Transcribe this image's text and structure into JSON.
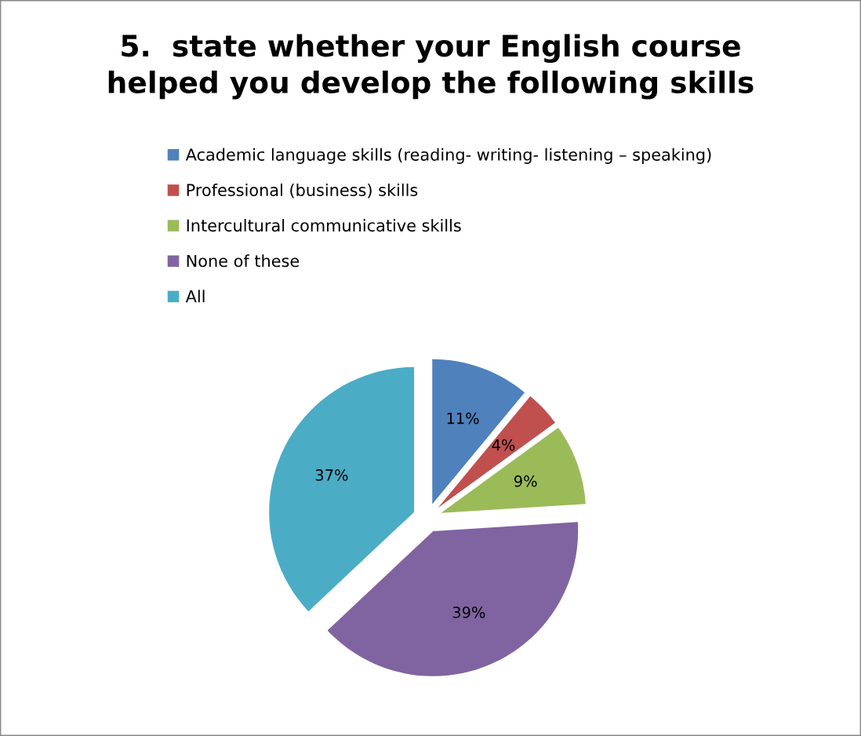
{
  "chart_data": {
    "type": "pie",
    "title": "5.  state whether your English course\nhelped you develop the following skills",
    "categories": [
      "Academic language skills (reading- writing- listening – speaking)",
      "Professional (business) skills",
      "Intercultural communicative skills",
      "None of these",
      "All"
    ],
    "values": [
      11,
      4,
      9,
      39,
      37
    ],
    "colors": [
      "#4f81bd",
      "#c0504d",
      "#9bbb59",
      "#8064a2",
      "#4bacc6"
    ],
    "value_labels": [
      "11%",
      "4%",
      "9%",
      "39%",
      "37%"
    ],
    "legend": "top"
  }
}
